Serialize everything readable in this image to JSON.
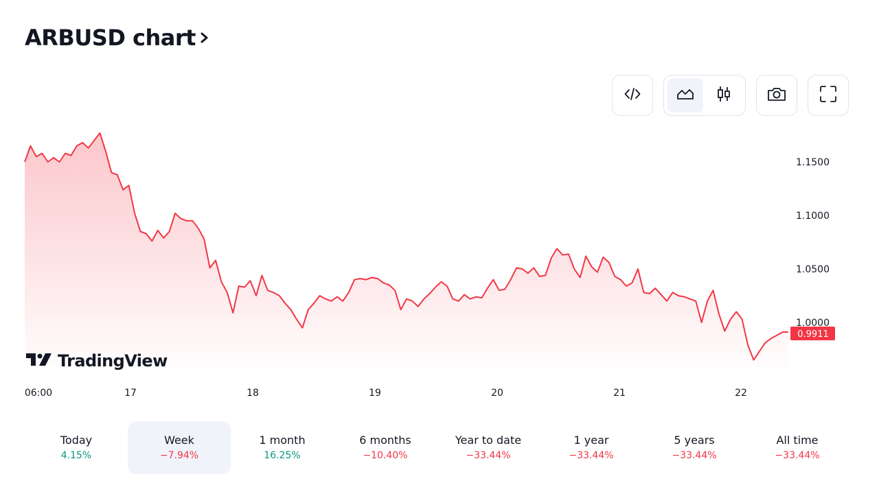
{
  "title": "ARBUSD chart",
  "toolbar": {
    "buttons": [
      {
        "icon": "embed-code-icon"
      },
      {
        "icon": "area-chart-icon",
        "active": true
      },
      {
        "icon": "candlestick-icon"
      },
      {
        "icon": "camera-icon"
      },
      {
        "icon": "fullscreen-icon"
      }
    ]
  },
  "chart": {
    "line_color": "#f23645",
    "y_ticks": [
      "1.1500",
      "1.1000",
      "1.0500",
      "1.0000"
    ],
    "x_ticks": [
      "06:00",
      "17",
      "18",
      "19",
      "20",
      "21",
      "22"
    ],
    "last_price": "0.9911"
  },
  "chart_data": {
    "type": "area",
    "title": "",
    "xlabel": "",
    "ylabel": "",
    "ylim": [
      0.955,
      1.18
    ],
    "x_ticks": [
      "06:00",
      "17",
      "18",
      "19",
      "20",
      "21",
      "22"
    ],
    "series": [
      {
        "values": [
          1.15,
          1.165,
          1.155,
          1.158,
          1.15,
          1.154,
          1.15,
          1.158,
          1.156,
          1.165,
          1.168,
          1.163,
          1.17,
          1.177,
          1.16,
          1.14,
          1.138,
          1.124,
          1.128,
          1.102,
          1.085,
          1.083,
          1.076,
          1.086,
          1.079,
          1.085,
          1.102,
          1.097,
          1.095,
          1.095,
          1.088,
          1.078,
          1.051,
          1.058,
          1.038,
          1.028,
          1.009,
          1.034,
          1.033,
          1.039,
          1.025,
          1.044,
          1.03,
          1.028,
          1.025,
          1.018,
          1.012,
          1.003,
          0.995,
          1.012,
          1.018,
          1.025,
          1.022,
          1.02,
          1.024,
          1.02,
          1.028,
          1.04,
          1.041,
          1.04,
          1.042,
          1.041,
          1.037,
          1.035,
          1.03,
          1.012,
          1.022,
          1.02,
          1.015,
          1.022,
          1.027,
          1.033,
          1.038,
          1.034,
          1.022,
          1.02,
          1.026,
          1.022,
          1.024,
          1.023,
          1.032,
          1.04,
          1.03,
          1.031,
          1.04,
          1.051,
          1.05,
          1.046,
          1.051,
          1.043,
          1.044,
          1.06,
          1.069,
          1.063,
          1.064,
          1.05,
          1.042,
          1.062,
          1.052,
          1.047,
          1.061,
          1.056,
          1.043,
          1.04,
          1.034,
          1.037,
          1.05,
          1.028,
          1.027,
          1.032,
          1.026,
          1.02,
          1.028,
          1.025,
          1.024,
          1.022,
          1.02,
          1.0,
          1.02,
          1.03,
          1.008,
          0.992,
          1.003,
          1.01,
          1.003,
          0.979,
          0.965,
          0.973,
          0.981,
          0.985,
          0.988,
          0.991,
          0.9911
        ]
      }
    ]
  },
  "brand": {
    "logo_text": "TradingView"
  },
  "periods": [
    {
      "label": "Today",
      "value": "4.15%",
      "positive": true,
      "active": false
    },
    {
      "label": "Week",
      "value": "−7.94%",
      "positive": false,
      "active": true
    },
    {
      "label": "1 month",
      "value": "16.25%",
      "positive": true,
      "active": false
    },
    {
      "label": "6 months",
      "value": "−10.40%",
      "positive": false,
      "active": false
    },
    {
      "label": "Year to date",
      "value": "−33.44%",
      "positive": false,
      "active": false
    },
    {
      "label": "1 year",
      "value": "−33.44%",
      "positive": false,
      "active": false
    },
    {
      "label": "5 years",
      "value": "−33.44%",
      "positive": false,
      "active": false
    },
    {
      "label": "All time",
      "value": "−33.44%",
      "positive": false,
      "active": false
    }
  ]
}
